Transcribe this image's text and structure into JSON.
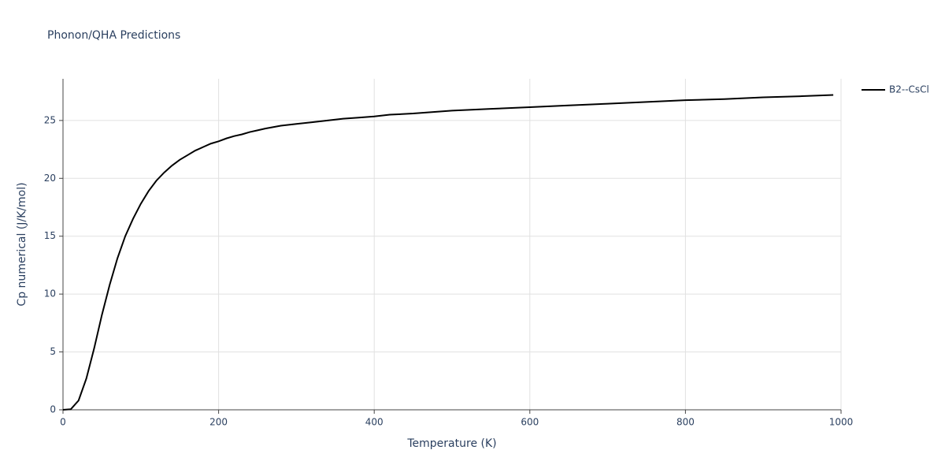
{
  "chart_data": {
    "type": "line",
    "title": "Phonon/QHA Predictions",
    "x_label": "Temperature (K)",
    "y_label": "Cp numerical (J/K/mol)",
    "x": [
      0,
      10,
      20,
      30,
      40,
      50,
      60,
      70,
      80,
      90,
      100,
      110,
      120,
      130,
      140,
      150,
      160,
      170,
      180,
      190,
      200,
      210,
      220,
      230,
      240,
      250,
      260,
      280,
      300,
      320,
      340,
      360,
      380,
      400,
      420,
      450,
      500,
      550,
      600,
      650,
      700,
      750,
      800,
      850,
      900,
      950,
      990
    ],
    "series": [
      {
        "name": "B2--CsCl",
        "color": "#000000",
        "values": [
          0,
          0.05,
          0.8,
          2.7,
          5.3,
          8.2,
          10.8,
          13.1,
          15.0,
          16.5,
          17.8,
          18.9,
          19.8,
          20.5,
          21.1,
          21.6,
          22.0,
          22.4,
          22.7,
          23.0,
          23.2,
          23.45,
          23.65,
          23.8,
          24.0,
          24.15,
          24.3,
          24.55,
          24.7,
          24.85,
          25.0,
          25.15,
          25.25,
          25.35,
          25.5,
          25.6,
          25.85,
          26.0,
          26.15,
          26.3,
          26.45,
          26.6,
          26.75,
          26.85,
          27.0,
          27.1,
          27.2
        ]
      }
    ],
    "xlim": [
      0,
      1000
    ],
    "xticks": [
      0,
      200,
      400,
      600,
      800,
      1000
    ],
    "ylim": [
      0,
      28.6
    ],
    "yticks": [
      0,
      5,
      10,
      15,
      20,
      25
    ],
    "grid": true,
    "legend": "top-right"
  }
}
